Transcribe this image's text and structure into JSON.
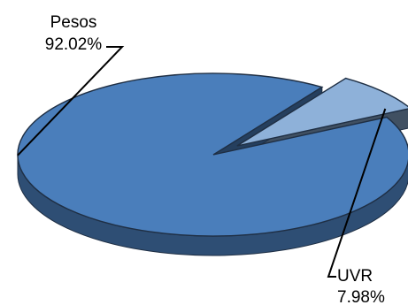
{
  "chart_data": {
    "type": "pie",
    "style": "3d-exploded",
    "slices": [
      {
        "name": "Pesos",
        "value": 92.02,
        "label": "92.02%",
        "color": "#4A7EBB",
        "exploded": false
      },
      {
        "name": "UVR",
        "value": 7.98,
        "label": "7.98%",
        "color": "#8EB1D9",
        "exploded": true
      }
    ],
    "legend": "none",
    "label_style": "callout-with-leader-lines"
  }
}
